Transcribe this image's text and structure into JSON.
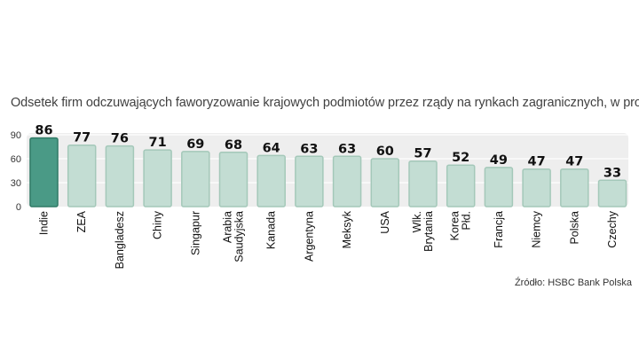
{
  "chart_data": {
    "type": "bar",
    "title": "Odsetek firm odczuwających faworyzowanie krajowych podmiotów przez rządy na rynkach zagranicznych, w proc.",
    "categories": [
      "Indie",
      "ZEA",
      "Bangladesz",
      "Chiny",
      "Singapur",
      "Arabia Saudyjska",
      "Kanada",
      "Argentyna",
      "Meksyk",
      "USA",
      "Wlk. Brytania",
      "Korea Płd.",
      "Francja",
      "Niemcy",
      "Polska",
      "Czechy"
    ],
    "category_lines": [
      [
        "Indie"
      ],
      [
        "ZEA"
      ],
      [
        "Bangladesz"
      ],
      [
        "Chiny"
      ],
      [
        "Singapur"
      ],
      [
        "Arabia",
        "Saudyjska"
      ],
      [
        "Kanada"
      ],
      [
        "Argentyna"
      ],
      [
        "Meksyk"
      ],
      [
        "USA"
      ],
      [
        "Wlk.",
        "Brytania"
      ],
      [
        "Korea",
        "Płd."
      ],
      [
        "Francja"
      ],
      [
        "Niemcy"
      ],
      [
        "Polska"
      ],
      [
        "Czechy"
      ]
    ],
    "values": [
      86,
      77,
      76,
      71,
      69,
      68,
      64,
      63,
      63,
      60,
      57,
      52,
      49,
      47,
      47,
      33
    ],
    "yticks": [
      0,
      30,
      60,
      90
    ],
    "ylim": [
      0,
      90
    ],
    "xlabel": "",
    "ylabel": "",
    "highlight_index": 0,
    "grid": true,
    "source": "Źródło: HSBC Bank Polska",
    "colors": {
      "highlight_bar": "#4a9a86",
      "highlight_stroke": "#2f7a66",
      "bar": "#c3ddd3",
      "bar_stroke": "#a4c8b9",
      "plot_bg": "#eeeeee",
      "grid": "#ffffff"
    }
  }
}
